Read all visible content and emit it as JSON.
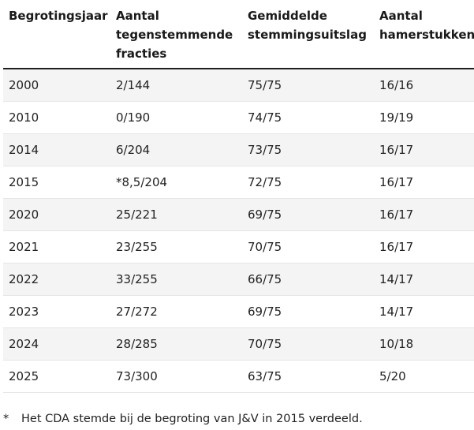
{
  "table": {
    "headers": [
      [
        "Begrotingsjaar"
      ],
      [
        "Aantal",
        "tegenstemmende",
        "fracties"
      ],
      [
        "Gemiddelde",
        "stemmingsuitslag"
      ],
      [
        "Aantal",
        "hamerstukken"
      ]
    ],
    "rows": [
      [
        "2000",
        "2/144",
        "75/75",
        "16/16"
      ],
      [
        "2010",
        "0/190",
        "74/75",
        "19/19"
      ],
      [
        "2014",
        "6/204",
        "73/75",
        "16/17"
      ],
      [
        "2015",
        "*8,5/204",
        "72/75",
        "16/17"
      ],
      [
        "2020",
        "25/221",
        "69/75",
        "16/17"
      ],
      [
        "2021",
        "23/255",
        "70/75",
        "16/17"
      ],
      [
        "2022",
        "33/255",
        "66/75",
        "14/17"
      ],
      [
        "2023",
        "27/272",
        "69/75",
        "14/17"
      ],
      [
        "2024",
        "28/285",
        "70/75",
        "10/18"
      ],
      [
        "2025",
        "73/300",
        "63/75",
        "5/20"
      ]
    ]
  },
  "footnote": {
    "marker": "*",
    "text": "Het CDA stemde bij de begroting van J&V in 2015 verdeeld."
  }
}
